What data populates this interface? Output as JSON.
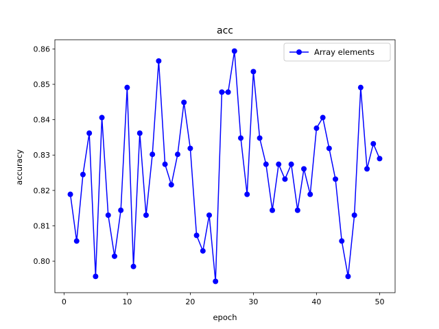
{
  "chart_data": {
    "type": "line",
    "title": "acc",
    "xlabel": "epoch",
    "ylabel": "accuracy",
    "xlim": [
      -1.45,
      52.45
    ],
    "ylim": [
      0.7911,
      0.8626
    ],
    "xticks": [
      0,
      10,
      20,
      30,
      40,
      50
    ],
    "yticks": [
      0.8,
      0.81,
      0.82,
      0.83,
      0.84,
      0.85,
      0.86
    ],
    "xtick_labels": [
      "0",
      "10",
      "20",
      "30",
      "40",
      "50"
    ],
    "ytick_labels": [
      "0.80",
      "0.81",
      "0.82",
      "0.83",
      "0.84",
      "0.85",
      "0.86"
    ],
    "grid": false,
    "legend_position": "top-right",
    "series": [
      {
        "name": "Array elements",
        "color": "#0000ff",
        "marker": "circle",
        "x": [
          1,
          2,
          3,
          4,
          5,
          6,
          7,
          8,
          9,
          10,
          11,
          12,
          13,
          14,
          15,
          16,
          17,
          18,
          19,
          20,
          21,
          22,
          23,
          24,
          25,
          26,
          27,
          28,
          29,
          30,
          31,
          32,
          33,
          34,
          35,
          36,
          37,
          38,
          39,
          40,
          41,
          42,
          43,
          44,
          45,
          46,
          47,
          48,
          49,
          50
        ],
        "y": [
          0.8189,
          0.8057,
          0.8245,
          0.8362,
          0.7957,
          0.8406,
          0.813,
          0.8014,
          0.8144,
          0.8491,
          0.7985,
          0.8362,
          0.813,
          0.8302,
          0.8566,
          0.8274,
          0.8216,
          0.8302,
          0.8449,
          0.8319,
          0.8073,
          0.8029,
          0.813,
          0.7943,
          0.8478,
          0.8478,
          0.8594,
          0.8348,
          0.8189,
          0.8536,
          0.8348,
          0.8274,
          0.8144,
          0.8274,
          0.8232,
          0.8274,
          0.8144,
          0.8261,
          0.8189,
          0.8376,
          0.8406,
          0.8319,
          0.8232,
          0.8057,
          0.7957,
          0.813,
          0.8491,
          0.8261,
          0.8332,
          0.829
        ]
      }
    ]
  }
}
